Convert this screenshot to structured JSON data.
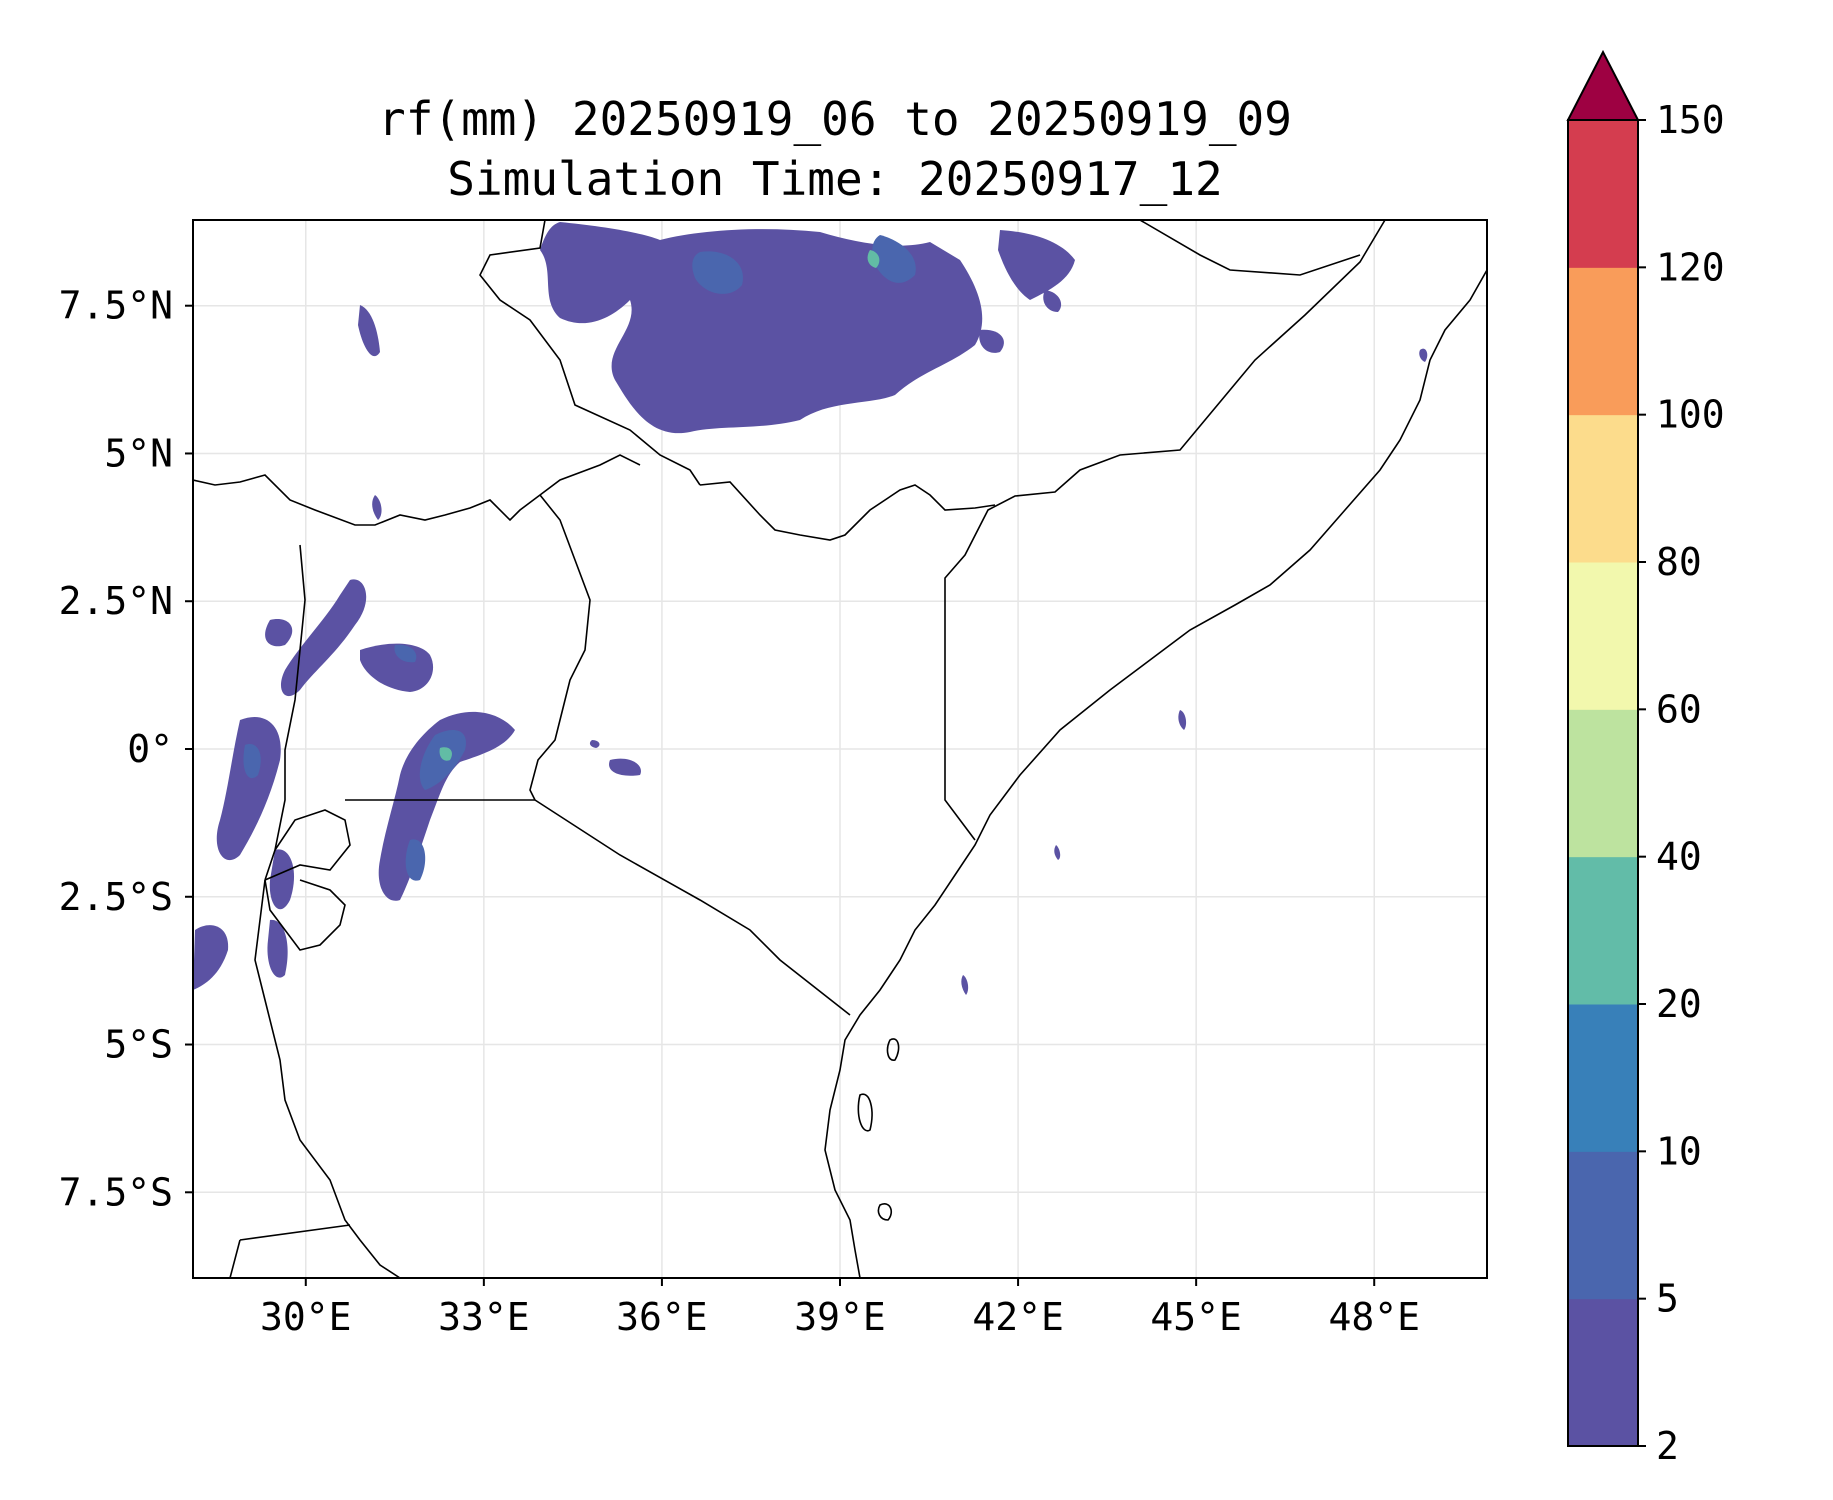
{
  "title": {
    "line1": "rf(mm) 20250919_06 to 20250919_09",
    "line2": "Simulation Time: 20250917_12"
  },
  "map": {
    "lon_range": [
      28.1,
      49.9
    ],
    "lat_range": [
      -8.95,
      8.95
    ],
    "x_ticks": [
      {
        "value": 30,
        "label": "30°E"
      },
      {
        "value": 33,
        "label": "33°E"
      },
      {
        "value": 36,
        "label": "36°E"
      },
      {
        "value": 39,
        "label": "39°E"
      },
      {
        "value": 42,
        "label": "42°E"
      },
      {
        "value": 45,
        "label": "45°E"
      },
      {
        "value": 48,
        "label": "48°E"
      }
    ],
    "y_ticks": [
      {
        "value": 7.5,
        "label": "7.5°N"
      },
      {
        "value": 5,
        "label": "5°N"
      },
      {
        "value": 2.5,
        "label": "2.5°N"
      },
      {
        "value": 0,
        "label": "0°"
      },
      {
        "value": -2.5,
        "label": "2.5°S"
      },
      {
        "value": -5,
        "label": "5°S"
      },
      {
        "value": -7.5,
        "label": "7.5°S"
      }
    ],
    "grid": true,
    "rain_colors": {
      "low": "#5b52a3",
      "mid": "#4a66ae",
      "high": "#3f83b7",
      "peak": "#62bca5"
    }
  },
  "colorbar": {
    "levels": [
      "2",
      "5",
      "10",
      "20",
      "40",
      "60",
      "80",
      "100",
      "120",
      "150"
    ],
    "colors": [
      "#5b52a3",
      "#4a66ae",
      "#3880b9",
      "#62bca8",
      "#bde39f",
      "#f2f8ad",
      "#fcdc8c",
      "#f99c5a",
      "#d43d4f"
    ],
    "extend_color": "#9e0142",
    "extend": "max"
  }
}
